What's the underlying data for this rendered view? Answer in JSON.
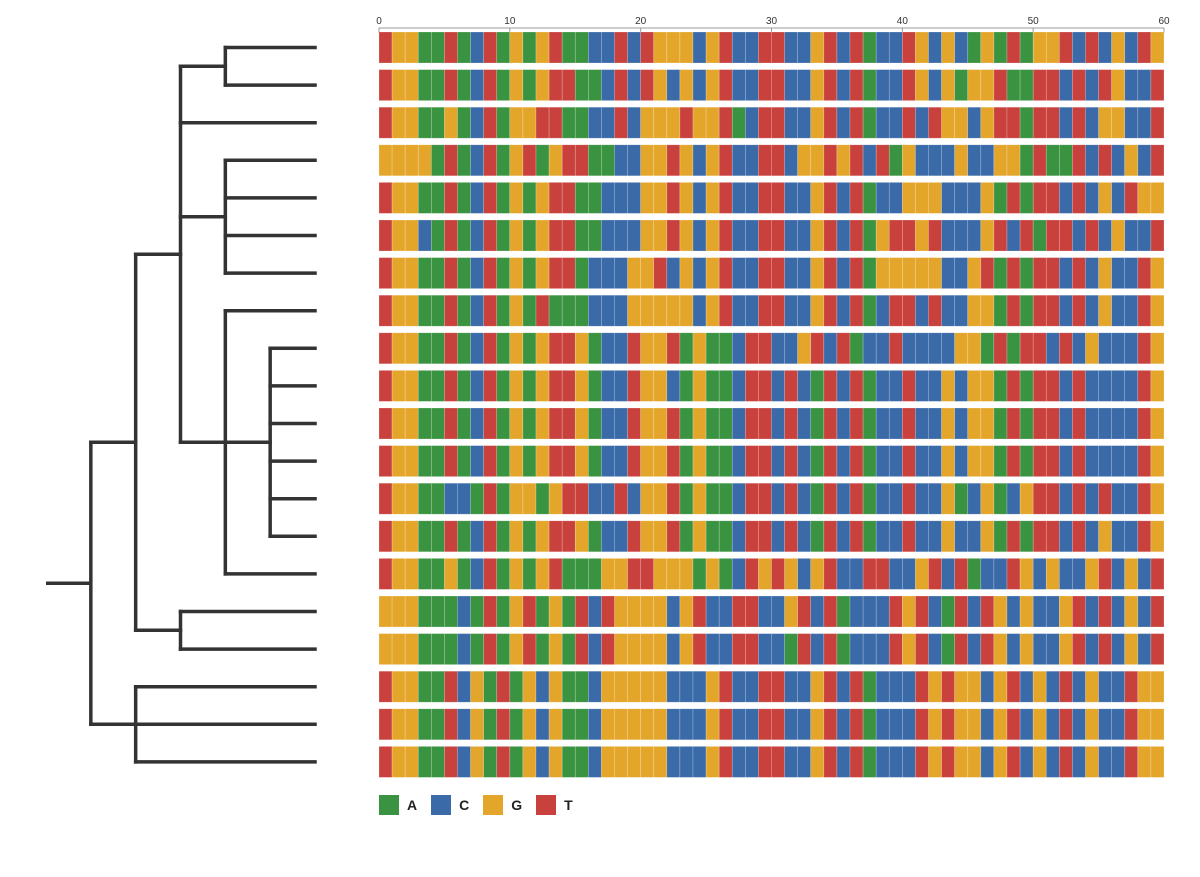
{
  "chart_data": {
    "type": "heatmap",
    "subtype": "sequence-alignment-with-dendrogram",
    "colors": {
      "A": "#3a9340",
      "C": "#3b6aa8",
      "G": "#e3a62b",
      "T": "#c9413d"
    },
    "legend": [
      {
        "base": "A",
        "label": "A",
        "color": "#3a9340"
      },
      {
        "base": "C",
        "label": "C",
        "color": "#3b6aa8"
      },
      {
        "base": "G",
        "label": "G",
        "color": "#e3a62b"
      },
      {
        "base": "T",
        "label": "T",
        "color": "#c9413d"
      }
    ],
    "x_axis": {
      "ticks": [
        0,
        10,
        20,
        30,
        40,
        50,
        60
      ],
      "range": [
        0,
        60
      ],
      "position": "top"
    },
    "n_positions": 60,
    "sequences": [
      "TGGAATACTAGAGTAACCTCTGGGCGTCCTTCCGTCTACCTGCGCAGATAGGTCTCGCTG",
      "TGGAATACTAGAGTTAACTCTGCGCGTCCTTCCGTCTACCTGCGAGGTAATTCTCTGCCT",
      "TGGAAGACTAGGTTAACCTCGGGTGGTACTTCCGTCTACCTCTGGCGTTATTCTCGGCCT",
      "GGGGATACTAGTAGTTAACCGGTGCGTCCTTCGGTGTCTAGCCCGCCGGATAATCTCGCT",
      "TGGAATACTAGAGTTAACCCGGTGCGTCCTTCCGTCTACCGGGCCCGATATTCTCGCT",
      "TGGCATACTAGAGTTAACCCGGTGCGTCCTTCCGTCTAGTTGTCCCGTCTATTCTCGCCT",
      "TGGAATACTAGAGTTACCCGGTCGCGTCCTTCCGTCTAGGGGGCCGTATATTCTCGCCT",
      "TGGAATACTAGATAAACCCGGGGGCGTCCTTCCGTCTACTTCTCCGGATATTCTCGCCT",
      "TGGAATACTAGAGTTGACCTGGTAGAACTTCCGTCTACCTCCCCGGATATTCTCGCCCT",
      "TGGAATACTAGAGTTGACCTGGCAGAACTTCTCATCTACCTCCGCGGATATTCTCCCCT",
      "TGGAATACTAGAGTTGACCTGGTAGAACTTCTCATCTACCTCCGCGGATATTCTCCCCT",
      "TGGAATACTAGAGTTGACCTGGTAGAACTTCTCATCTACCTCCGCGGATATTCTCCCCT",
      "TGGAACCATAGGAGTTCCTCGGTAGAACTTCTCATCTACCTCCGACGACGTTCTCTCCT",
      "TGGAATACTAGAGTTGACCTGGTAGAACTTCTCATCTACCTCCGCCGATATTCTCGCCT",
      "TGGAAGACTAGAGTAAAGGTTGGGAGACTGTGCGTCCTTCCGTCTACCTGCGCCGTCGCT",
      "GGGAAACATAGTAGATCTGGGGCGTCCTTCCGTCTACCCTGTCATCTGCGCCGTCTCGCT",
      "GGGAAACATAGTAGATCTGGGGCGTCCTTCCATCTACCCTGTCATCTGCGCCGTCTCGCT",
      "TGGAATCGATAGCGAACGGGGGCCCGTCCTTCCGTCTACCCTGTGGCGTCGCTCGCCT",
      "TGGAATCGATAGCGAACGGGGGCCCGTCCTTCCGTCTACCCTGTGGCGTCGCTCGCCT",
      "TGGAATCGATAGCGAACGGGGGCCCGTCCTTCCGTCTACCCTGTGGCGTCGCTCGCCT"
    ],
    "tree": {
      "children": [
        {
          "children": [
            {
              "children": [
                {
                  "children": [
                    {
                      "leaf": 0
                    },
                    {
                      "leaf": 1
                    }
                  ]
                },
                {
                  "leaf": 2
                },
                {
                  "children": [
                    {
                      "leaf": 3
                    },
                    {
                      "leaf": 4
                    },
                    {
                      "leaf": 5
                    },
                    {
                      "leaf": 6
                    }
                  ]
                },
                {
                  "children": [
                    {
                      "leaf": 7
                    },
                    {
                      "children": [
                        {
                          "leaf": 8
                        },
                        {
                          "leaf": 9
                        },
                        {
                          "leaf": 10
                        },
                        {
                          "leaf": 11
                        },
                        {
                          "leaf": 12
                        },
                        {
                          "leaf": 13
                        }
                      ]
                    },
                    {
                      "leaf": 14
                    }
                  ]
                }
              ]
            },
            {
              "children": [
                {
                  "leaf": 15
                },
                {
                  "leaf": 16
                }
              ]
            }
          ]
        },
        {
          "children": [
            {
              "leaf": 17
            },
            {
              "leaf": 18
            },
            {
              "leaf": 19
            }
          ]
        }
      ]
    }
  }
}
